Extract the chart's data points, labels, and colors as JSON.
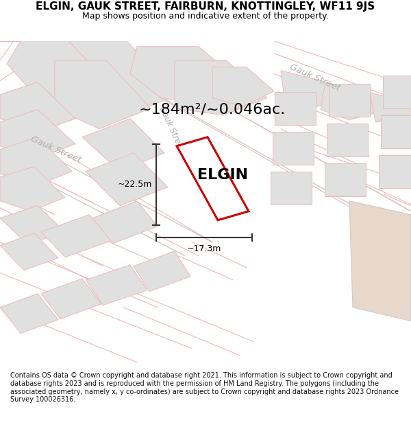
{
  "title": "ELGIN, GAUK STREET, FAIRBURN, KNOTTINGLEY, WF11 9JS",
  "subtitle": "Map shows position and indicative extent of the property.",
  "area_text": "~184m²/~0.046ac.",
  "elgin_label": "ELGIN",
  "dim_width": "~17.3m",
  "dim_height": "~22.5m",
  "footer": "Contains OS data © Crown copyright and database right 2021. This information is subject to Crown copyright and database rights 2023 and is reproduced with the permission of HM Land Registry. The polygons (including the associated geometry, namely x, y co-ordinates) are subject to Crown copyright and database rights 2023 Ordnance Survey 100026316.",
  "bg_color": "#ffffff",
  "map_bg": "#f0f0f0",
  "block_color": "#e0e0e0",
  "street_line_color": "#f0b8b8",
  "road_outline_color": "#cccccc",
  "red_plot_color": "#cc0000",
  "dim_line_color": "#333333",
  "street_label_color": "#b0b0b0",
  "tan_block_color": "#e8d8cc",
  "title_color": "#000000",
  "elgin_font_size": 16,
  "area_font_size": 16,
  "title_font_size": 11,
  "subtitle_font_size": 9,
  "footer_font_size": 7.0
}
